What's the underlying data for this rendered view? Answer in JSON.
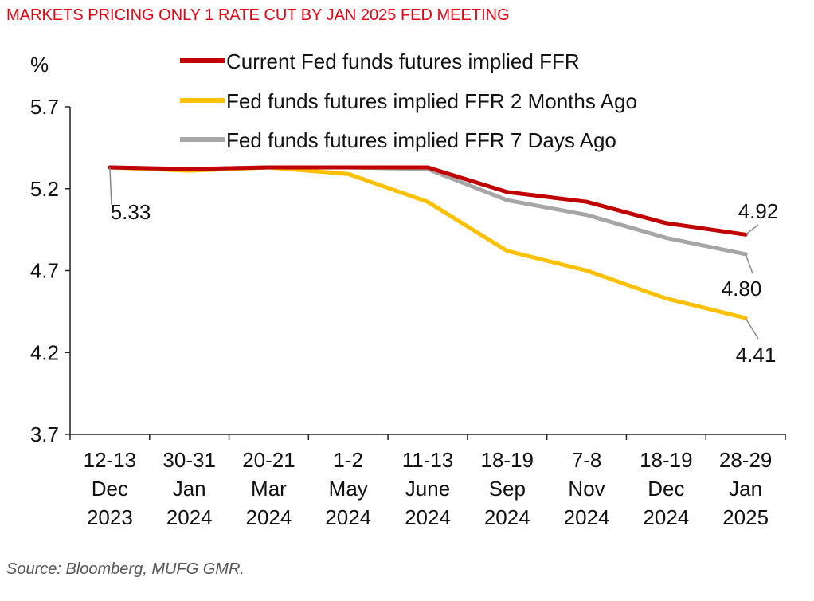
{
  "title": "MARKETS PRICING ONLY 1 RATE CUT BY JAN 2025 FED MEETING",
  "source": "Source: Bloomberg, MUFG GMR.",
  "chart_data": {
    "type": "line",
    "title": "MARKETS PRICING ONLY 1 RATE CUT BY JAN 2025 FED MEETING",
    "ylabel": "%",
    "ylim": [
      3.7,
      5.7
    ],
    "yticks": [
      "3.7",
      "4.2",
      "4.7",
      "5.2",
      "5.7"
    ],
    "categories": [
      [
        "12-13",
        "Dec",
        "2023"
      ],
      [
        "30-31",
        "Jan",
        "2024"
      ],
      [
        "20-21",
        "Mar",
        "2024"
      ],
      [
        "1-2",
        "May",
        "2024"
      ],
      [
        "11-13",
        "June",
        "2024"
      ],
      [
        "18-19",
        "Sep",
        "2024"
      ],
      [
        "7-8",
        "Nov",
        "2024"
      ],
      [
        "18-19",
        "Dec",
        "2024"
      ],
      [
        "28-29",
        "Jan",
        "2025"
      ]
    ],
    "series": [
      {
        "name": "Current Fed funds futures implied FFR",
        "color": "#c00000",
        "values": [
          5.33,
          5.32,
          5.33,
          5.33,
          5.33,
          5.18,
          5.12,
          4.99,
          4.92
        ]
      },
      {
        "name": "Fed funds futures implied FFR 2 Months Ago",
        "color": "#ffc000",
        "values": [
          5.33,
          5.31,
          5.33,
          5.29,
          5.12,
          4.82,
          4.7,
          4.53,
          4.41
        ]
      },
      {
        "name": "Fed funds futures implied FFR 7 Days Ago",
        "color": "#a6a6a6",
        "values": [
          5.33,
          5.32,
          5.33,
          5.33,
          5.32,
          5.13,
          5.04,
          4.9,
          4.8
        ]
      }
    ],
    "annotations": [
      {
        "text": "5.33",
        "series": 2,
        "index": 0
      },
      {
        "text": "4.92",
        "series": 0,
        "index": 8
      },
      {
        "text": "4.80",
        "series": 2,
        "index": 8
      },
      {
        "text": "4.41",
        "series": 1,
        "index": 8
      }
    ],
    "legend_position": "top"
  }
}
